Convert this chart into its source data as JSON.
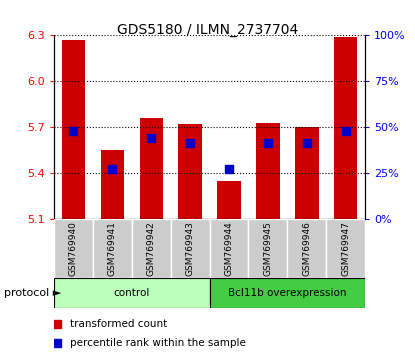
{
  "title": "GDS5180 / ILMN_2737704",
  "samples": [
    "GSM769940",
    "GSM769941",
    "GSM769942",
    "GSM769943",
    "GSM769944",
    "GSM769945",
    "GSM769946",
    "GSM769947"
  ],
  "red_values": [
    6.27,
    5.55,
    5.76,
    5.72,
    5.35,
    5.73,
    5.7,
    6.29
  ],
  "blue_values": [
    5.68,
    5.43,
    5.63,
    5.6,
    5.43,
    5.6,
    5.6,
    5.68
  ],
  "baseline": 5.1,
  "ylim": [
    5.1,
    6.3
  ],
  "yticks_left": [
    5.1,
    5.4,
    5.7,
    6.0,
    6.3
  ],
  "yticks_right_values": [
    0,
    25,
    50,
    75,
    100
  ],
  "yticks_right_positions": [
    5.1,
    5.4,
    5.7,
    6.0,
    6.3
  ],
  "bar_color": "#cc0000",
  "dot_color": "#0000cc",
  "protocol_groups": [
    {
      "label": "control",
      "indices": [
        0,
        1,
        2,
        3
      ],
      "color": "#bbffbb"
    },
    {
      "label": "Bcl11b overexpression",
      "indices": [
        4,
        5,
        6,
        7
      ],
      "color": "#44cc44"
    }
  ],
  "bar_width": 0.6,
  "dot_size": 30
}
